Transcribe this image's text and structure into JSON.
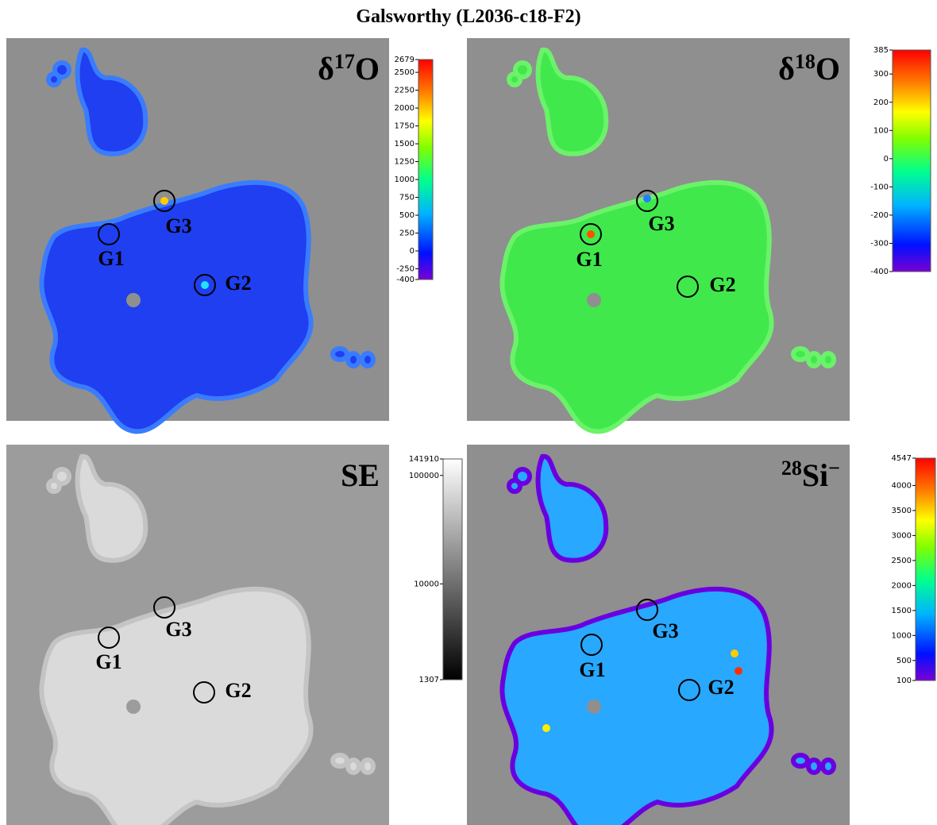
{
  "title": "Galsworthy (L2036-c18-F2)",
  "panels": [
    {
      "label": [
        {
          "text": "δ"
        },
        {
          "text": "17",
          "sup": true
        },
        {
          "text": "O"
        }
      ],
      "markers": [
        {
          "label": "G3"
        },
        {
          "label": "G1"
        },
        {
          "label": "G2"
        }
      ],
      "colorbar": {
        "scale": "linear",
        "colormap": "rainbow",
        "lim": [
          -400,
          2679
        ],
        "ticks": [
          2679,
          2500,
          2250,
          2000,
          1750,
          1500,
          1250,
          1000,
          750,
          500,
          250,
          0,
          -250,
          -400
        ]
      }
    },
    {
      "label": [
        {
          "text": "δ"
        },
        {
          "text": "18",
          "sup": true
        },
        {
          "text": "O"
        }
      ],
      "markers": [
        {
          "label": "G3"
        },
        {
          "label": "G1"
        },
        {
          "label": "G2"
        }
      ],
      "colorbar": {
        "scale": "linear",
        "colormap": "rainbow",
        "lim": [
          -400,
          385
        ],
        "ticks": [
          385,
          300,
          200,
          100,
          0,
          -100,
          -200,
          -300,
          -400
        ]
      }
    },
    {
      "label": [
        {
          "text": "SE"
        }
      ],
      "markers": [
        {
          "label": "G3"
        },
        {
          "label": "G1"
        },
        {
          "label": "G2"
        }
      ],
      "colorbar": {
        "scale": "log",
        "colormap": "gray",
        "lim": [
          1307,
          141910
        ],
        "ticks": [
          141910,
          100000,
          10000,
          1307
        ]
      }
    },
    {
      "label": [
        {
          "text": "28",
          "sup": true
        },
        {
          "text": "Si"
        },
        {
          "text": "−",
          "sup": true
        }
      ],
      "markers": [
        {
          "label": "G3"
        },
        {
          "label": "G1"
        },
        {
          "label": "G2"
        }
      ],
      "colorbar": {
        "scale": "linear",
        "colormap": "rainbow",
        "lim": [
          100,
          4547
        ],
        "ticks": [
          4547,
          4000,
          3500,
          3000,
          2500,
          2000,
          1500,
          1000,
          500,
          100
        ]
      }
    }
  ]
}
